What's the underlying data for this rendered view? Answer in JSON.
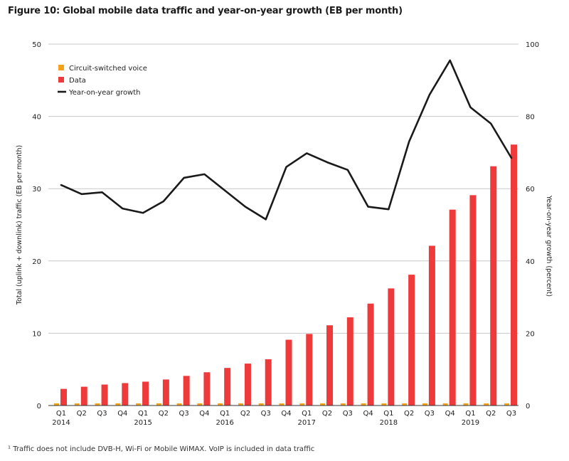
{
  "title": "Figure 10: Global mobile data traffic and year-on-year growth (EB per month)",
  "footnote": "¹ Traffic does not include DVB-H, Wi-Fi or Mobile WiMAX. VoIP is included in data traffic",
  "colors": {
    "voice": "#f4a21b",
    "data": "#ee3a3a",
    "growth": "#1a1a1a",
    "grid": "#c8c8c8"
  },
  "chart_data": {
    "type": "bar",
    "categories": [
      "Q1",
      "Q2",
      "Q3",
      "Q4",
      "Q1",
      "Q2",
      "Q3",
      "Q4",
      "Q1",
      "Q2",
      "Q3",
      "Q4",
      "Q1",
      "Q2",
      "Q3",
      "Q4",
      "Q1",
      "Q2",
      "Q3",
      "Q4",
      "Q1",
      "Q2",
      "Q3"
    ],
    "year_labels": [
      {
        "index": 0,
        "label": "2014"
      },
      {
        "index": 4,
        "label": "2015"
      },
      {
        "index": 8,
        "label": "2016"
      },
      {
        "index": 12,
        "label": "2017"
      },
      {
        "index": 16,
        "label": "2018"
      },
      {
        "index": 20,
        "label": "2019"
      }
    ],
    "series": [
      {
        "name": "Circuit-switched voice",
        "type": "bar",
        "axis": "left",
        "values": [
          0.3,
          0.3,
          0.3,
          0.3,
          0.3,
          0.3,
          0.3,
          0.3,
          0.3,
          0.3,
          0.3,
          0.3,
          0.3,
          0.3,
          0.3,
          0.3,
          0.3,
          0.3,
          0.3,
          0.3,
          0.3,
          0.3,
          0.3
        ]
      },
      {
        "name": "Data",
        "type": "bar",
        "axis": "left",
        "values": [
          2.3,
          2.6,
          2.9,
          3.1,
          3.3,
          3.6,
          4.1,
          4.6,
          5.2,
          5.8,
          6.4,
          9.1,
          9.9,
          11.1,
          12.2,
          14.1,
          16.2,
          18.1,
          22.1,
          27.1,
          29.1,
          33.1,
          36.1
        ]
      },
      {
        "name": "Year-on-year growth",
        "type": "line",
        "axis": "right",
        "values": [
          61,
          58.5,
          59,
          54.5,
          53.3,
          56.5,
          63,
          64,
          59.5,
          55,
          51.5,
          66,
          69.8,
          67.3,
          65.2,
          55,
          54.3,
          73,
          86,
          95.5,
          82.5,
          78,
          68.5
        ]
      }
    ],
    "ylabel_left": "Total (uplink + downlink) traffic (EB per month)",
    "ylabel_right": "Year-on-year growth (percent)",
    "ylim_left": [
      0,
      50
    ],
    "ylim_right": [
      0,
      100
    ],
    "yticks_left": [
      0,
      10,
      20,
      30,
      40,
      50
    ],
    "yticks_right": [
      0,
      20,
      40,
      60,
      80,
      100
    ],
    "grid": true,
    "legend_position": "top-left"
  }
}
